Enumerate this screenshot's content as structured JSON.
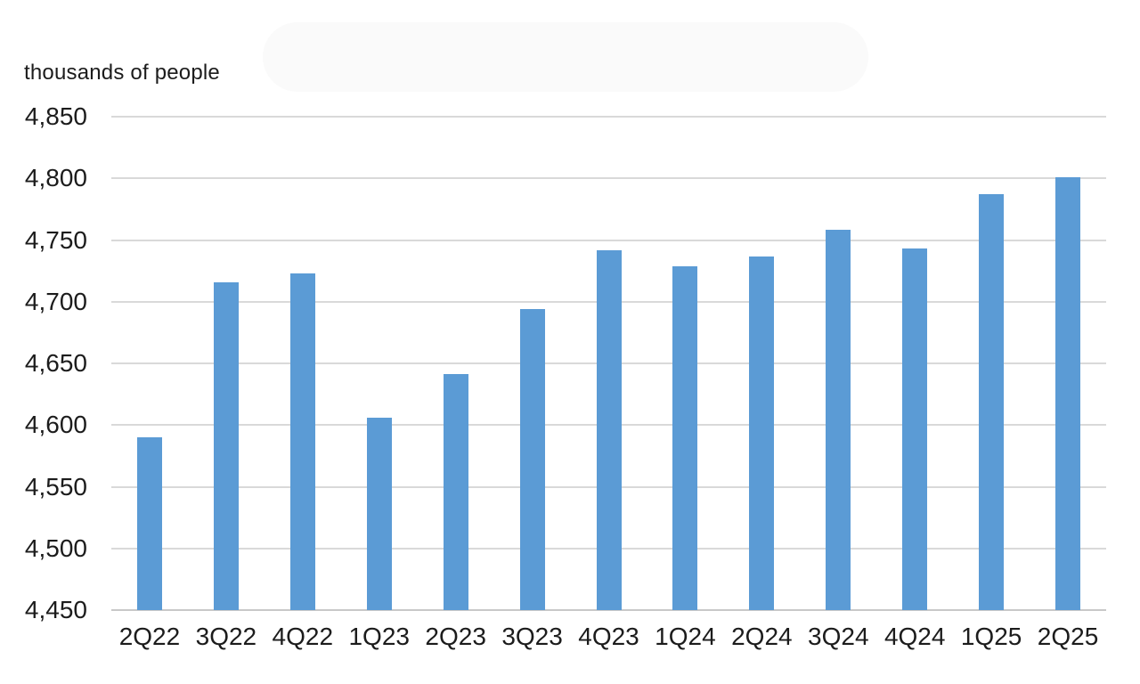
{
  "chart_data": {
    "type": "bar",
    "title": "",
    "xlabel": "",
    "ylabel": "thousands of people",
    "categories": [
      "2Q22",
      "3Q22",
      "4Q22",
      "1Q23",
      "2Q23",
      "3Q23",
      "4Q23",
      "1Q24",
      "2Q24",
      "3Q24",
      "4Q24",
      "1Q25",
      "2Q25"
    ],
    "values": [
      4590,
      4716,
      4723,
      4606,
      4641,
      4694,
      4742,
      4729,
      4737,
      4758,
      4743,
      4787,
      4801
    ],
    "ylim": [
      4450,
      4850
    ],
    "ytick_step": 50,
    "ytick_labels": [
      "4,450",
      "4,500",
      "4,550",
      "4,600",
      "4,650",
      "4,700",
      "4,750",
      "4,800",
      "4,850"
    ],
    "grid": true,
    "legend": "none",
    "colors": {
      "bar": "#5B9BD5",
      "gridline": "#D9D9D9",
      "axis_line": "#C8C8C8",
      "text": "#1C1C1C",
      "redaction_blob": "#FAFAFA"
    }
  }
}
